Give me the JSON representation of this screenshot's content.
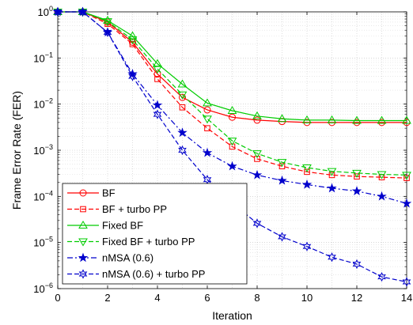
{
  "chart_data": {
    "type": "line",
    "xlabel": "Iteration",
    "ylabel": "Frame Error Rate (FER)",
    "xlim": [
      0,
      14
    ],
    "ylim": [
      1e-06,
      1
    ],
    "yscale": "log",
    "grid": true,
    "legend_position": "bottom-left",
    "x_ticks": [
      "0",
      "2",
      "4",
      "6",
      "8",
      "10",
      "12",
      "14"
    ],
    "y_ticks": [
      {
        "base": "10",
        "exp": "−6",
        "value": 1e-06
      },
      {
        "base": "10",
        "exp": "−5",
        "value": 1e-05
      },
      {
        "base": "10",
        "exp": "−4",
        "value": 0.0001
      },
      {
        "base": "10",
        "exp": "−3",
        "value": 0.001
      },
      {
        "base": "10",
        "exp": "−2",
        "value": 0.01
      },
      {
        "base": "10",
        "exp": "−1",
        "value": 0.1
      },
      {
        "base": "10",
        "exp": "0",
        "value": 1
      }
    ],
    "x": [
      0,
      1,
      2,
      3,
      4,
      5,
      6,
      7,
      8,
      9,
      10,
      11,
      12,
      13,
      14
    ],
    "series": [
      {
        "name": "BF",
        "color": "#ff0000",
        "dash": "solid",
        "marker": "circle",
        "values": [
          1.0,
          1.0,
          0.6,
          0.22,
          0.045,
          0.014,
          0.0075,
          0.0052,
          0.0045,
          0.0042,
          0.004,
          0.004,
          0.004,
          0.004,
          0.004
        ]
      },
      {
        "name": "BF + turbo PP",
        "color": "#ff0000",
        "dash": "dashed",
        "marker": "square",
        "values": [
          1.0,
          1.0,
          0.55,
          0.2,
          0.035,
          0.0085,
          0.003,
          0.0012,
          0.00065,
          0.00045,
          0.00034,
          0.00029,
          0.00027,
          0.00026,
          0.00025
        ]
      },
      {
        "name": "Fixed BF",
        "color": "#00cc00",
        "dash": "solid",
        "marker": "triangle-up",
        "values": [
          1.0,
          1.0,
          0.65,
          0.3,
          0.075,
          0.027,
          0.0105,
          0.0072,
          0.0055,
          0.0048,
          0.0045,
          0.0045,
          0.0044,
          0.0044,
          0.0044
        ]
      },
      {
        "name": "Fixed BF + turbo PP",
        "color": "#00cc00",
        "dash": "dashed",
        "marker": "triangle-down",
        "values": [
          1.0,
          1.0,
          0.62,
          0.25,
          0.058,
          0.016,
          0.0048,
          0.0016,
          0.00085,
          0.00055,
          0.00042,
          0.00035,
          0.00032,
          0.0003,
          0.00029
        ]
      },
      {
        "name": "nMSA (0.6)",
        "color": "#0000cc",
        "dash": "dashdot",
        "marker": "star5",
        "values": [
          1.0,
          1.0,
          0.36,
          0.045,
          0.0095,
          0.0024,
          0.00088,
          0.00045,
          0.00029,
          0.00022,
          0.00018,
          0.00015,
          0.00013,
          0.0001,
          7e-05
        ]
      },
      {
        "name": "nMSA (0.6) + turbo PP",
        "color": "#0000cc",
        "dash": "dashed",
        "marker": "star6",
        "values": [
          1.0,
          1.0,
          0.36,
          0.04,
          0.006,
          0.001,
          0.00023,
          7.2e-05,
          2.6e-05,
          1.33e-05,
          8.2e-06,
          4.8e-06,
          3.4e-06,
          1.8e-06,
          1.4e-06
        ]
      }
    ]
  }
}
